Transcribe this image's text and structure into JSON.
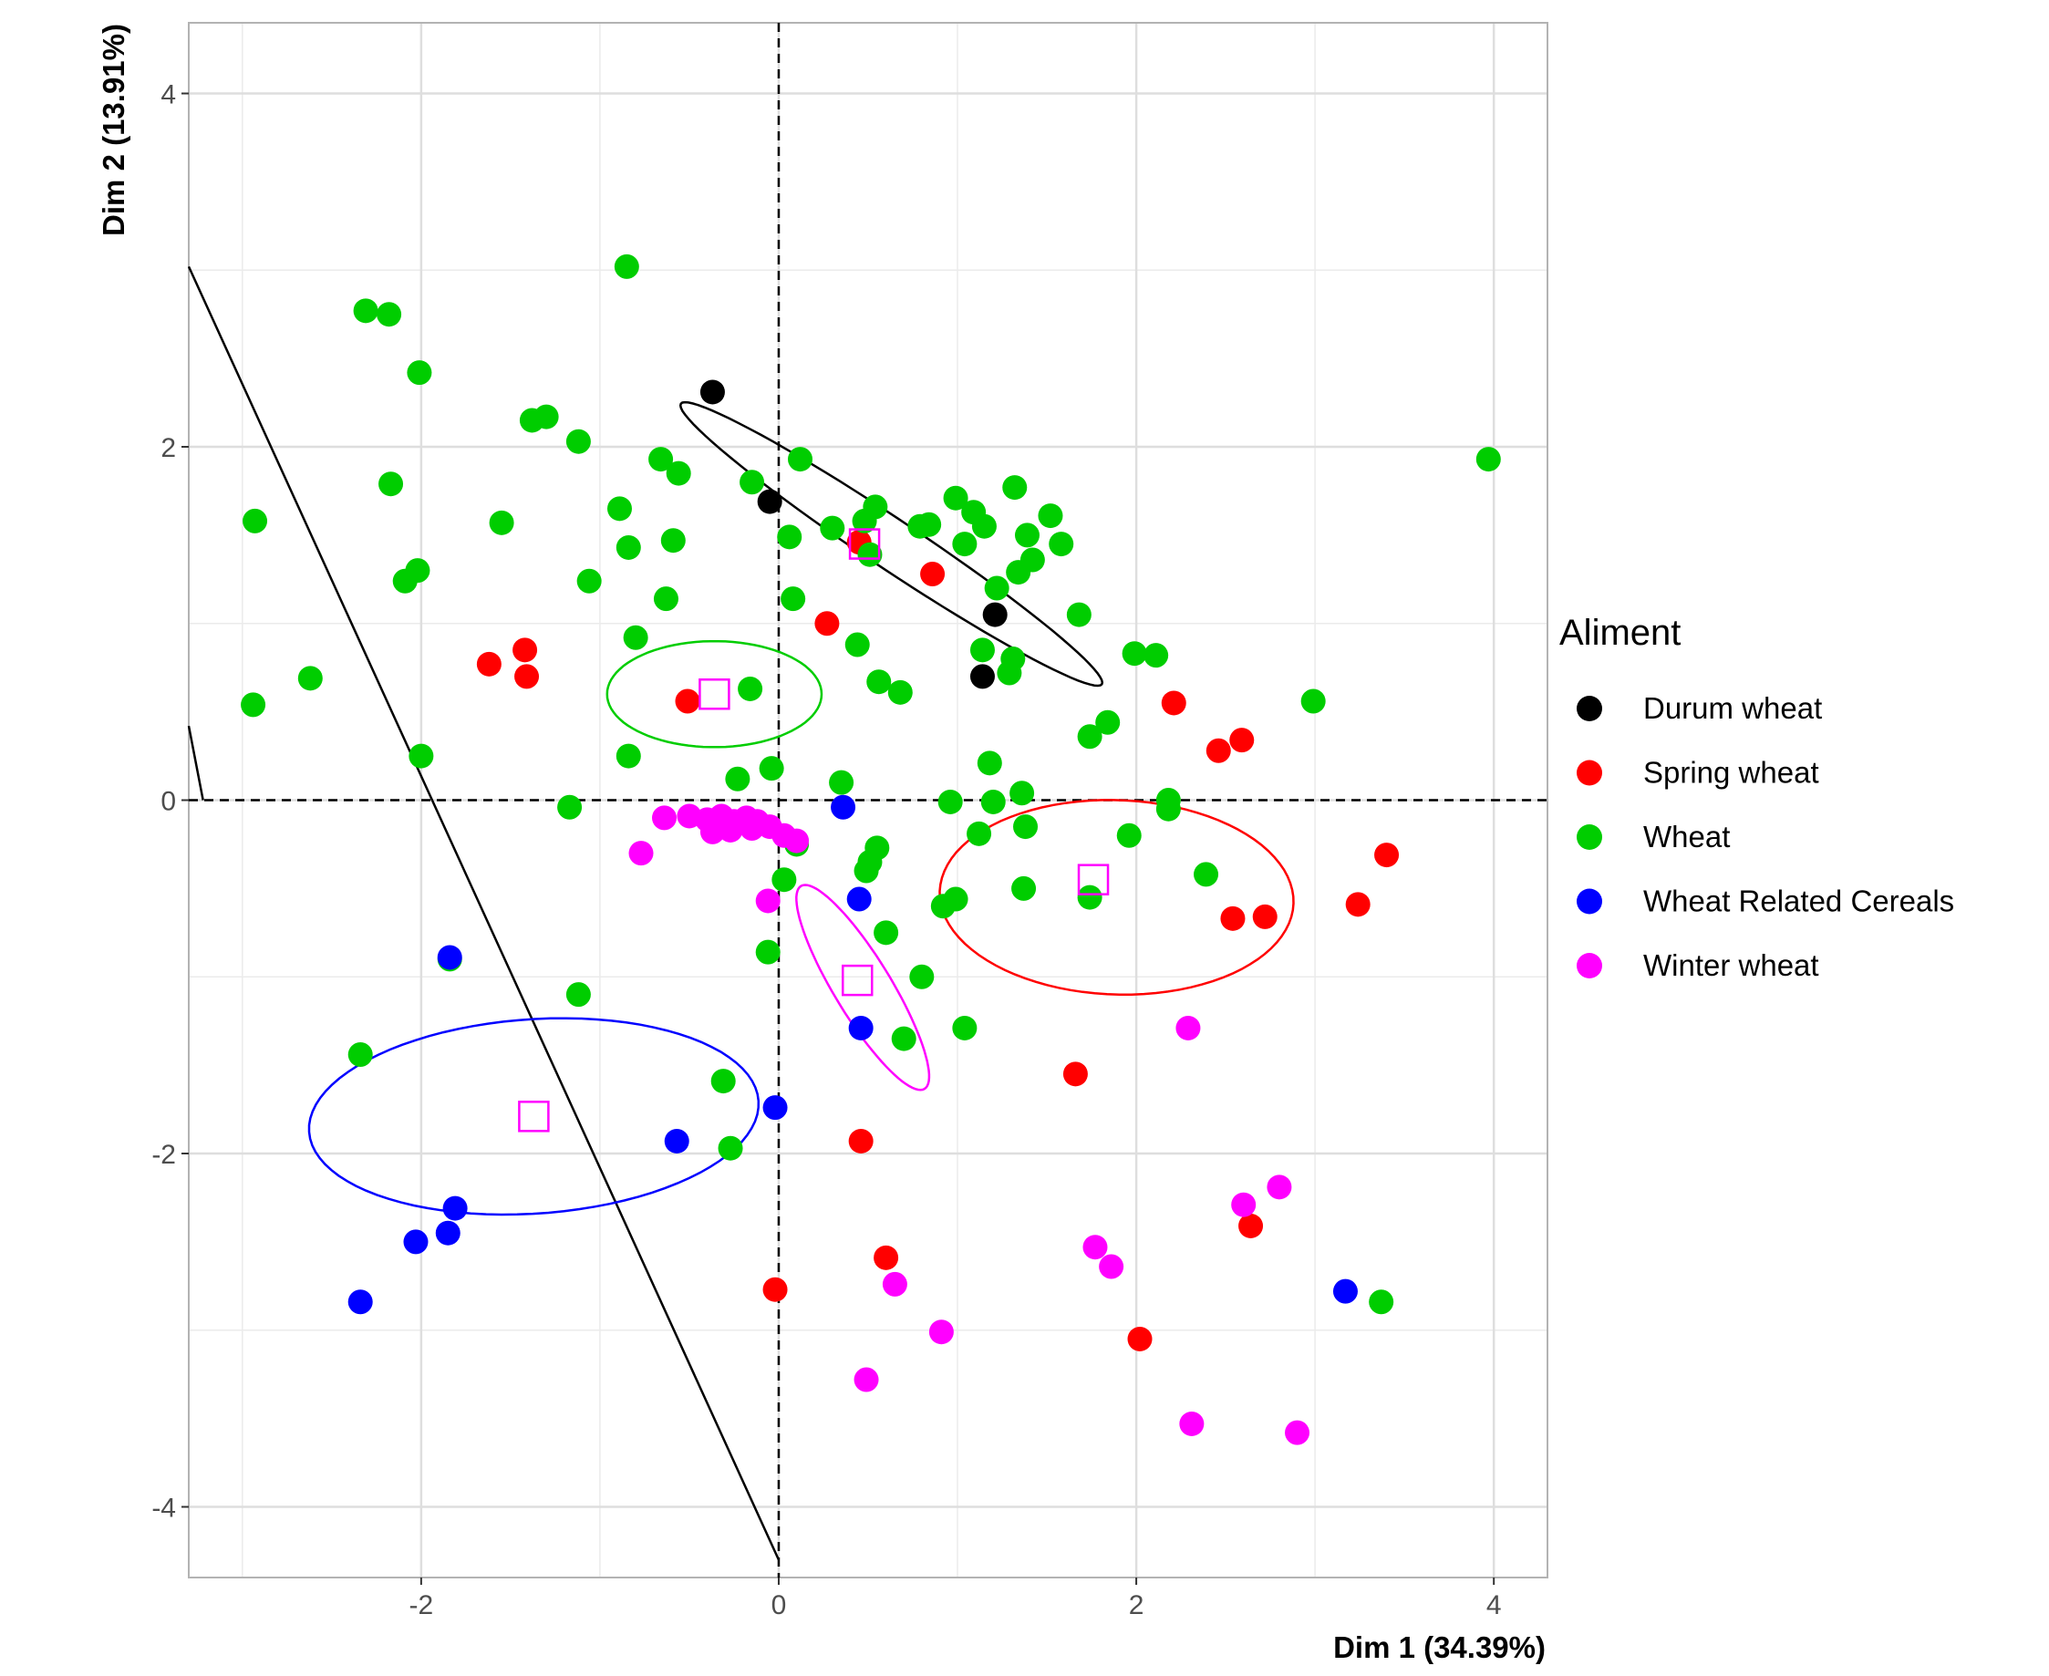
{
  "chart_data": {
    "type": "scatter",
    "title": "",
    "xlabel": "Dim 1 (34.39%)",
    "ylabel": "Dim 2 (13.91%)",
    "xlim": [
      -3.3,
      4.3
    ],
    "ylim": [
      -4.4,
      4.4
    ],
    "x_ticks": [
      -2,
      0,
      2,
      4
    ],
    "y_ticks": [
      -4,
      -2,
      0,
      2,
      4
    ],
    "grid": true,
    "legend": {
      "title": "Aliment",
      "position": "right"
    },
    "series": [
      {
        "name": "Durum wheat",
        "color": "#000000",
        "points": [
          [
            -0.37,
            2.31
          ],
          [
            -0.05,
            1.69
          ],
          [
            1.21,
            1.05
          ],
          [
            1.14,
            0.7
          ]
        ]
      },
      {
        "name": "Spring wheat",
        "color": "#ff0000",
        "points": [
          [
            -1.62,
            0.77
          ],
          [
            -1.42,
            0.85
          ],
          [
            -1.41,
            0.7
          ],
          [
            -0.51,
            0.56
          ],
          [
            0.27,
            1.0
          ],
          [
            0.45,
            1.46
          ],
          [
            0.86,
            1.28
          ],
          [
            2.21,
            0.55
          ],
          [
            2.46,
            0.28
          ],
          [
            2.59,
            0.34
          ],
          [
            2.54,
            -0.67
          ],
          [
            2.72,
            -0.66
          ],
          [
            3.24,
            -0.59
          ],
          [
            3.4,
            -0.31
          ],
          [
            1.66,
            -1.55
          ],
          [
            0.46,
            -1.93
          ],
          [
            0.6,
            -2.59
          ],
          [
            2.64,
            -2.41
          ],
          [
            -0.02,
            -2.77
          ],
          [
            2.02,
            -3.05
          ]
        ]
      },
      {
        "name": "Wheat",
        "color": "#00cd00",
        "points": [
          [
            -0.85,
            3.02
          ],
          [
            -2.31,
            2.77
          ],
          [
            -2.18,
            2.75
          ],
          [
            -2.01,
            2.42
          ],
          [
            -1.38,
            2.15
          ],
          [
            -1.3,
            2.17
          ],
          [
            -1.12,
            2.03
          ],
          [
            -2.17,
            1.79
          ],
          [
            -2.93,
            1.58
          ],
          [
            -1.55,
            1.57
          ],
          [
            -0.89,
            1.65
          ],
          [
            -0.84,
            1.43
          ],
          [
            -0.66,
            1.93
          ],
          [
            -0.56,
            1.85
          ],
          [
            -0.59,
            1.47
          ],
          [
            -0.63,
            1.14
          ],
          [
            -2.02,
            1.3
          ],
          [
            -2.09,
            1.24
          ],
          [
            -1.06,
            1.24
          ],
          [
            -0.8,
            0.92
          ],
          [
            -2.62,
            0.69
          ],
          [
            -2.94,
            0.54
          ],
          [
            -0.16,
            0.63
          ],
          [
            -2.0,
            0.25
          ],
          [
            -0.84,
            0.25
          ],
          [
            -0.23,
            0.12
          ],
          [
            -0.04,
            0.18
          ],
          [
            0.35,
            0.1
          ],
          [
            -1.17,
            -0.04
          ],
          [
            -0.15,
            1.8
          ],
          [
            0.12,
            1.93
          ],
          [
            0.06,
            1.49
          ],
          [
            0.08,
            1.14
          ],
          [
            0.3,
            1.54
          ],
          [
            0.48,
            1.58
          ],
          [
            0.54,
            1.66
          ],
          [
            0.51,
            1.39
          ],
          [
            0.79,
            1.55
          ],
          [
            0.84,
            1.56
          ],
          [
            0.99,
            1.71
          ],
          [
            1.09,
            1.63
          ],
          [
            1.15,
            1.55
          ],
          [
            1.04,
            1.45
          ],
          [
            1.32,
            1.77
          ],
          [
            1.39,
            1.5
          ],
          [
            1.52,
            1.61
          ],
          [
            1.58,
            1.45
          ],
          [
            1.34,
            1.29
          ],
          [
            1.42,
            1.36
          ],
          [
            1.22,
            1.2
          ],
          [
            1.68,
            1.05
          ],
          [
            0.44,
            0.88
          ],
          [
            0.56,
            0.67
          ],
          [
            0.68,
            0.61
          ],
          [
            1.14,
            0.85
          ],
          [
            1.31,
            0.8
          ],
          [
            1.29,
            0.72
          ],
          [
            1.99,
            0.83
          ],
          [
            2.11,
            0.82
          ],
          [
            1.84,
            0.44
          ],
          [
            1.74,
            0.36
          ],
          [
            2.99,
            0.56
          ],
          [
            3.97,
            1.93
          ],
          [
            0.96,
            -0.01
          ],
          [
            1.18,
            0.21
          ],
          [
            1.2,
            -0.01
          ],
          [
            1.36,
            0.04
          ],
          [
            1.12,
            -0.19
          ],
          [
            1.38,
            -0.15
          ],
          [
            1.96,
            -0.2
          ],
          [
            2.18,
            0.0
          ],
          [
            2.18,
            -0.05
          ],
          [
            2.39,
            -0.42
          ],
          [
            1.37,
            -0.5
          ],
          [
            1.74,
            -0.55
          ],
          [
            0.99,
            -0.56
          ],
          [
            0.92,
            -0.6
          ],
          [
            0.55,
            -0.27
          ],
          [
            0.51,
            -0.35
          ],
          [
            0.49,
            -0.4
          ],
          [
            0.1,
            -0.25
          ],
          [
            0.03,
            -0.45
          ],
          [
            0.6,
            -0.75
          ],
          [
            -0.06,
            -0.86
          ],
          [
            0.8,
            -1.0
          ],
          [
            1.04,
            -1.29
          ],
          [
            0.7,
            -1.35
          ],
          [
            -1.12,
            -1.1
          ],
          [
            -1.84,
            -0.9
          ],
          [
            -2.34,
            -1.44
          ],
          [
            -0.31,
            -1.59
          ],
          [
            -0.27,
            -1.97
          ],
          [
            3.37,
            -2.84
          ]
        ]
      },
      {
        "name": "Wheat Related Cereals",
        "color": "#0000ff",
        "points": [
          [
            0.36,
            -0.04
          ],
          [
            0.45,
            -0.56
          ],
          [
            0.46,
            -1.29
          ],
          [
            -0.02,
            -1.74
          ],
          [
            -0.57,
            -1.93
          ],
          [
            -1.81,
            -2.31
          ],
          [
            -1.85,
            -2.45
          ],
          [
            -2.03,
            -2.5
          ],
          [
            -2.34,
            -2.84
          ],
          [
            3.17,
            -2.78
          ],
          [
            -1.84,
            -0.89
          ]
        ]
      },
      {
        "name": "Winter wheat",
        "color": "#ff00ff",
        "points": [
          [
            -0.64,
            -0.1
          ],
          [
            -0.5,
            -0.09
          ],
          [
            -0.4,
            -0.11
          ],
          [
            -0.32,
            -0.09
          ],
          [
            -0.25,
            -0.12
          ],
          [
            -0.18,
            -0.1
          ],
          [
            -0.12,
            -0.12
          ],
          [
            -0.05,
            -0.15
          ],
          [
            0.03,
            -0.2
          ],
          [
            0.1,
            -0.23
          ],
          [
            -0.37,
            -0.18
          ],
          [
            -0.27,
            -0.17
          ],
          [
            -0.15,
            -0.16
          ],
          [
            -0.77,
            -0.3
          ],
          [
            -0.06,
            -0.57
          ],
          [
            2.29,
            -1.29
          ],
          [
            2.6,
            -2.29
          ],
          [
            2.8,
            -2.19
          ],
          [
            1.77,
            -2.53
          ],
          [
            1.86,
            -2.64
          ],
          [
            0.65,
            -2.74
          ],
          [
            0.91,
            -3.01
          ],
          [
            0.49,
            -3.28
          ],
          [
            2.31,
            -3.53
          ],
          [
            2.9,
            -3.58
          ]
        ]
      }
    ],
    "centroids": [
      [
        0.48,
        1.45
      ],
      [
        -0.36,
        0.6
      ],
      [
        1.76,
        -0.45
      ],
      [
        0.44,
        -1.02
      ],
      [
        -1.37,
        -1.79
      ]
    ],
    "centroid_color": "#ff00ff",
    "ellipses": [
      {
        "color": "#000000",
        "cx": 0.63,
        "cy": 1.45,
        "rx": 1.42,
        "ry": 0.14,
        "angle": -34
      },
      {
        "color": "#00cd00",
        "cx": -0.36,
        "cy": 0.6,
        "rx": 0.6,
        "ry": 0.3,
        "angle": 0
      },
      {
        "color": "#ff0000",
        "cx": 1.89,
        "cy": -0.55,
        "rx": 0.99,
        "ry": 0.55,
        "angle": -2
      },
      {
        "color": "#ff00ff",
        "cx": 0.47,
        "cy": -1.06,
        "rx": 0.67,
        "ry": 0.16,
        "angle": -59
      },
      {
        "color": "#0000ff",
        "cx": -1.37,
        "cy": -1.79,
        "rx": 1.26,
        "ry": 0.55,
        "angle": 4
      }
    ],
    "reference_lines": [
      {
        "type": "hline",
        "y": 0,
        "style": "dashed"
      },
      {
        "type": "vline",
        "x": 0,
        "style": "dashed"
      }
    ],
    "extra_lines": [
      {
        "points": [
          [
            -3.3,
            3.02
          ],
          [
            0.0,
            -4.3
          ]
        ],
        "color": "#000000"
      },
      {
        "points": [
          [
            -3.3,
            0.42
          ],
          [
            -3.22,
            0.0
          ]
        ],
        "color": "#000000"
      }
    ]
  }
}
